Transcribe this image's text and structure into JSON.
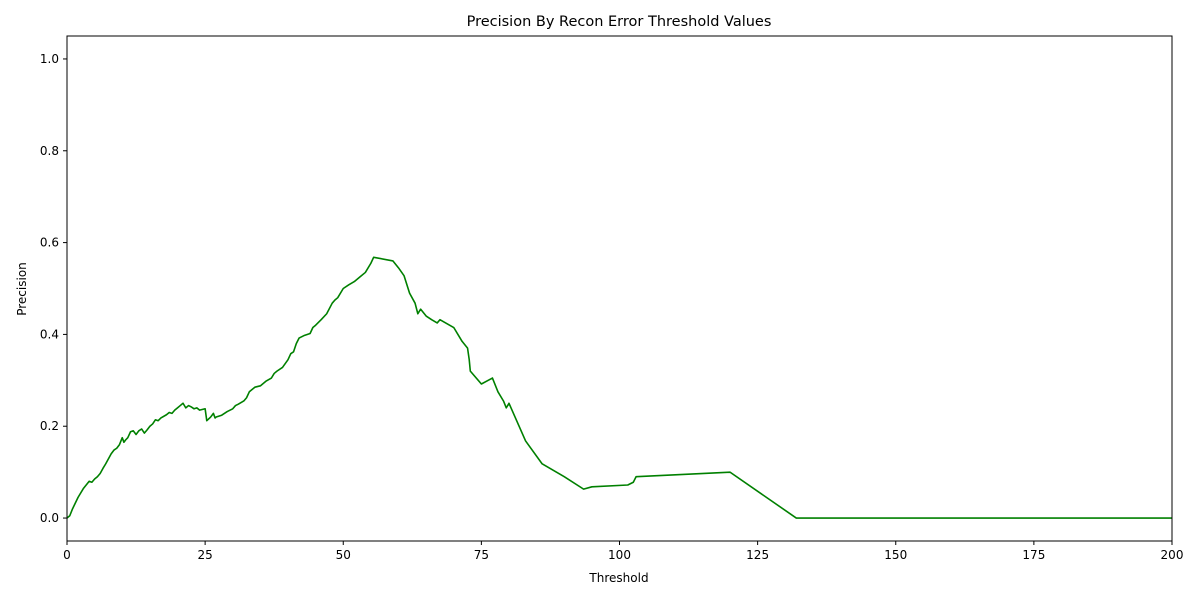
{
  "chart_data": {
    "type": "line",
    "title": "Precision By Recon Error Threshold Values",
    "xlabel": "Threshold",
    "ylabel": "Precision",
    "xlim": [
      0,
      200
    ],
    "ylim": [
      -0.05,
      1.05
    ],
    "xticks": [
      0,
      25,
      50,
      75,
      100,
      125,
      150,
      175,
      200
    ],
    "yticks": [
      0.0,
      0.2,
      0.4,
      0.6,
      0.8,
      1.0
    ],
    "grid": false,
    "series": [
      {
        "color": "#008000",
        "x": [
          0,
          0.5,
          1,
          2,
          3,
          4,
          4.5,
          5,
          5.5,
          6,
          6.5,
          7,
          8,
          8.5,
          9,
          9.5,
          10,
          10.3,
          10.6,
          11,
          11.5,
          12,
          12.5,
          13,
          13.5,
          14,
          14.5,
          15,
          15.5,
          16,
          16.5,
          17,
          18,
          18.5,
          19,
          19.5,
          20,
          20.5,
          21,
          21.5,
          22,
          22.5,
          23,
          23.5,
          24,
          25,
          25.3,
          26,
          26.5,
          26.8,
          27,
          28,
          29,
          30,
          30.5,
          31,
          32,
          32.5,
          33,
          34,
          35,
          36,
          37,
          37.5,
          38,
          39,
          40,
          40.5,
          41,
          41.5,
          42,
          43,
          44,
          44.5,
          45,
          46,
          47,
          48,
          48.5,
          49,
          50,
          51,
          52,
          53,
          54,
          55,
          55.5,
          59,
          60,
          61,
          62,
          63,
          63.5,
          64,
          65,
          66,
          67,
          67.5,
          70,
          71,
          71.5,
          72.5,
          72.8,
          73,
          75,
          77,
          78,
          79,
          79.5,
          80,
          83,
          86,
          90,
          93.5,
          95,
          101.5,
          102.5,
          103,
          120,
          132,
          200
        ],
        "y": [
          0.0,
          0.005,
          0.02,
          0.045,
          0.065,
          0.08,
          0.078,
          0.085,
          0.09,
          0.097,
          0.108,
          0.118,
          0.14,
          0.148,
          0.152,
          0.16,
          0.175,
          0.165,
          0.17,
          0.175,
          0.188,
          0.19,
          0.182,
          0.19,
          0.194,
          0.185,
          0.192,
          0.2,
          0.205,
          0.214,
          0.212,
          0.218,
          0.225,
          0.23,
          0.228,
          0.235,
          0.24,
          0.245,
          0.25,
          0.24,
          0.245,
          0.242,
          0.238,
          0.24,
          0.235,
          0.238,
          0.212,
          0.22,
          0.228,
          0.218,
          0.22,
          0.224,
          0.232,
          0.238,
          0.245,
          0.248,
          0.255,
          0.262,
          0.275,
          0.285,
          0.288,
          0.298,
          0.305,
          0.315,
          0.32,
          0.328,
          0.345,
          0.358,
          0.362,
          0.38,
          0.392,
          0.398,
          0.402,
          0.415,
          0.42,
          0.432,
          0.445,
          0.468,
          0.475,
          0.48,
          0.5,
          0.508,
          0.515,
          0.525,
          0.535,
          0.555,
          0.568,
          0.56,
          0.545,
          0.528,
          0.49,
          0.468,
          0.445,
          0.455,
          0.44,
          0.432,
          0.425,
          0.432,
          0.415,
          0.395,
          0.385,
          0.37,
          0.345,
          0.32,
          0.292,
          0.305,
          0.275,
          0.255,
          0.24,
          0.25,
          0.168,
          0.118,
          0.09,
          0.063,
          0.068,
          0.072,
          0.078,
          0.09,
          0.1,
          0.0,
          0.0
        ]
      }
    ]
  }
}
